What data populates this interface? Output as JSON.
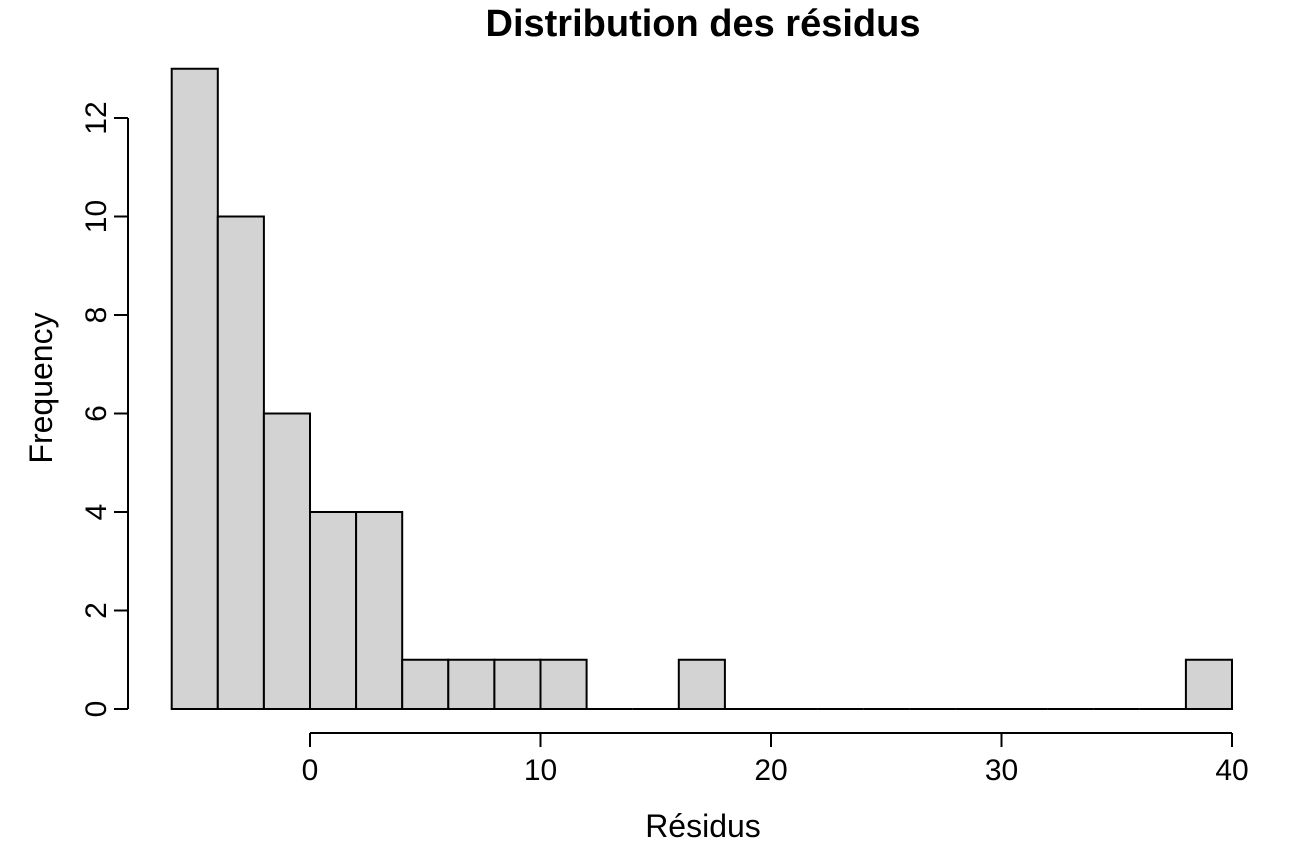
{
  "chart_data": {
    "type": "bar",
    "title": "Distribution des résidus",
    "xlabel": "Résidus",
    "ylabel": "Frequency",
    "bin_edges": [
      -6,
      -4,
      -2,
      0,
      2,
      4,
      6,
      8,
      10,
      12,
      14,
      16,
      18,
      20,
      22,
      24,
      26,
      28,
      30,
      32,
      34,
      36,
      38,
      40
    ],
    "counts": [
      13,
      10,
      6,
      4,
      4,
      1,
      1,
      1,
      1,
      0,
      0,
      1,
      0,
      0,
      0,
      0,
      0,
      0,
      0,
      0,
      0,
      0,
      1
    ],
    "xlim": [
      -6,
      40
    ],
    "ylim": [
      0,
      13
    ],
    "x_ticks": [
      0,
      10,
      20,
      30,
      40
    ],
    "y_ticks": [
      0,
      2,
      4,
      6,
      8,
      10,
      12
    ],
    "bar_color": "#d3d3d3",
    "grid": false
  }
}
